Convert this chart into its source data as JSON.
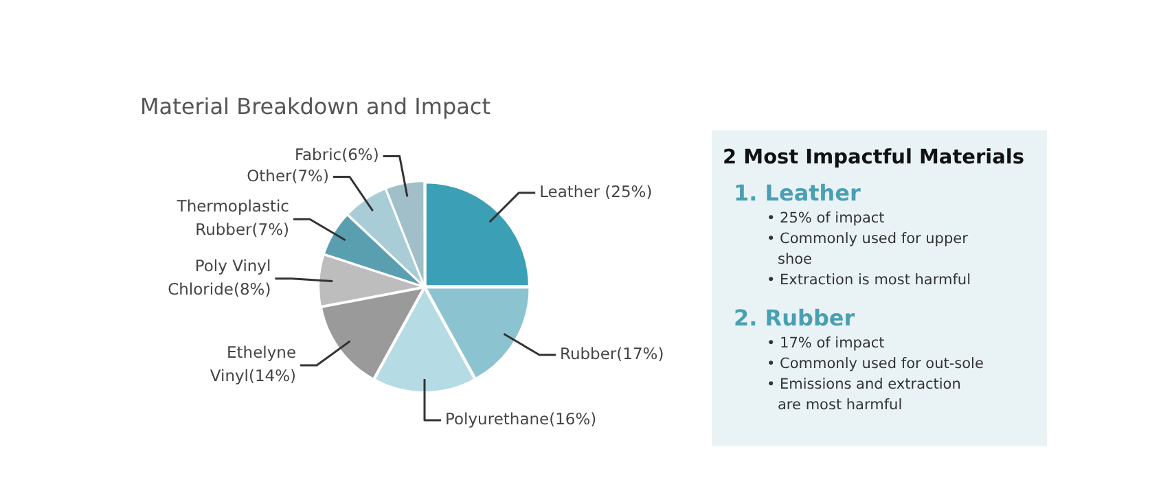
{
  "chart_data": [
    {
      "type": "pie",
      "title": "Material Breakdown and Impact",
      "categories": [
        "Leather (25%)",
        "Rubber(17%)",
        "Polyurethane(16%)",
        "Ethelyne Vinyl(14%)",
        "Poly Vinyl Chloride(8%)",
        "Thermoplastic Rubber(7%)",
        "Other(7%)",
        "Fabric(6%)"
      ],
      "values": [
        25,
        17,
        16,
        14,
        8,
        7,
        7,
        6
      ],
      "colors": [
        "#3b9fb5",
        "#8cc3d1",
        "#b5dbe4",
        "#9a9a9a",
        "#bdbdbd",
        "#5a9fb0",
        "#a8cdd6",
        "#a0bfc8"
      ],
      "legend": false
    },
    {
      "type": "other",
      "title": "2 Most Impactful Materials"
    },
    {
      "type": "other",
      "title": "1. Leather",
      "annotations": [
        "• 25% of impact",
        "• Commonly used for upper shoe",
        "• Extraction is most harmful"
      ]
    },
    {
      "type": "other",
      "title": "2. Rubber",
      "annotations": [
        "• 17% of impact",
        "• Commonly used for out-sole",
        "• Emissions and extraction are most harmful"
      ]
    }
  ]
}
